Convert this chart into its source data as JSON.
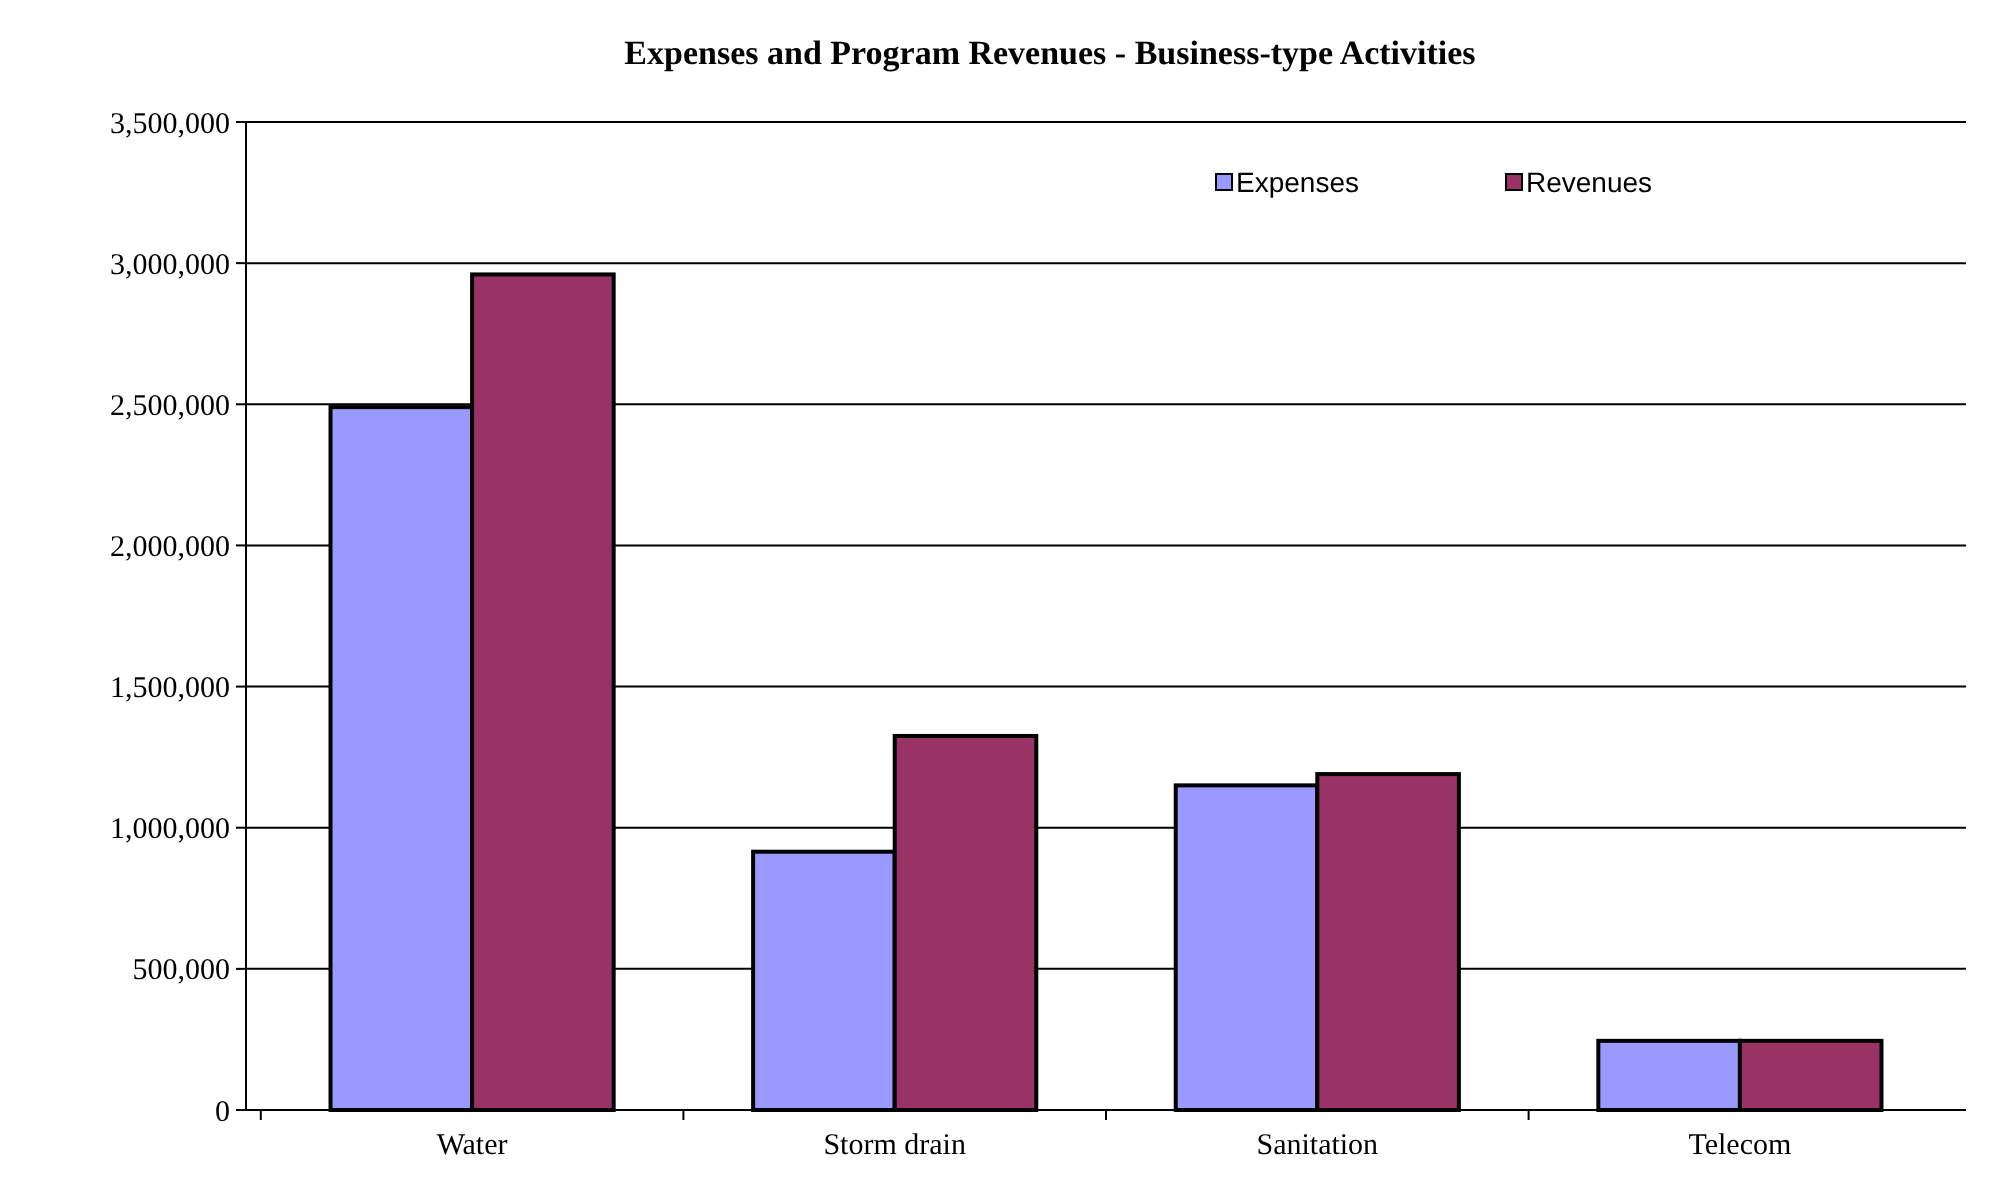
{
  "chart_data": {
    "type": "bar",
    "title": "Expenses and Program Revenues - Business-type Activities",
    "categories": [
      "Water",
      "Storm drain",
      "Sanitation",
      "Telecom"
    ],
    "series": [
      {
        "name": "Expenses",
        "color": "#9999ff",
        "values": [
          2490000,
          915000,
          1150000,
          245000
        ]
      },
      {
        "name": "Revenues",
        "color": "#993366",
        "values": [
          2960000,
          1325000,
          1190000,
          245000
        ]
      }
    ],
    "ylim": [
      0,
      3500000
    ],
    "yticks": [
      {
        "value": 0,
        "label": "0"
      },
      {
        "value": 500000,
        "label": "500,000"
      },
      {
        "value": 1000000,
        "label": "1,000,000"
      },
      {
        "value": 1500000,
        "label": "1,500,000"
      },
      {
        "value": 2000000,
        "label": "2,000,000"
      },
      {
        "value": 2500000,
        "label": "2,500,000"
      },
      {
        "value": 3000000,
        "label": "3,000,000"
      },
      {
        "value": 3500000,
        "label": "3,500,000"
      }
    ],
    "grid": "y",
    "legend": "top right"
  }
}
